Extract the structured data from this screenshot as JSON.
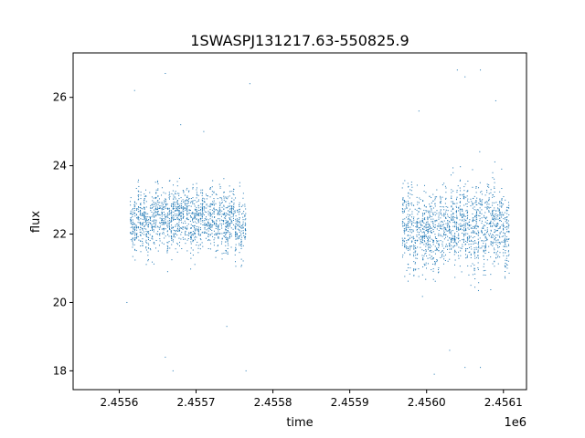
{
  "chart_data": {
    "type": "scatter",
    "title": "1SWASPJ131217.63-550825.9",
    "xlabel": "time",
    "ylabel": "flux",
    "x_offset_label": "1e6",
    "xlim": [
      2.45554,
      2.45613
    ],
    "ylim": [
      17.45,
      27.3
    ],
    "x_ticks": [
      2.4556,
      2.4557,
      2.4558,
      2.4559,
      2.456,
      2.4561
    ],
    "x_tick_labels": [
      "2.4556",
      "2.4557",
      "2.4558",
      "2.4559",
      "2.4560",
      "2.4561"
    ],
    "y_ticks": [
      18,
      20,
      22,
      24,
      26
    ],
    "y_tick_labels": [
      "18",
      "20",
      "22",
      "24",
      "26"
    ],
    "grid": false,
    "marker_color": "#1f77b4",
    "series": [
      {
        "segments": [
          {
            "x_start": 2.455615,
            "x_end": 2.455764,
            "y_center": 22.4,
            "y_spread": 0.75,
            "y_min": 20.0,
            "y_max": 24.1
          },
          {
            "x_start": 2.455969,
            "x_end": 2.456107,
            "y_center": 22.2,
            "y_spread": 1.0,
            "y_min": 20.0,
            "y_max": 24.6
          }
        ],
        "outliers": [
          [
            2.45562,
            26.2
          ],
          [
            2.45566,
            26.7
          ],
          [
            2.45571,
            25.0
          ],
          [
            2.45568,
            25.2
          ],
          [
            2.45566,
            18.4
          ],
          [
            2.45567,
            18.0
          ],
          [
            2.45574,
            19.3
          ],
          [
            2.45577,
            26.4
          ],
          [
            2.455765,
            18.0
          ],
          [
            2.45561,
            20.0
          ],
          [
            2.45599,
            25.6
          ],
          [
            2.45604,
            26.8
          ],
          [
            2.45605,
            26.6
          ],
          [
            2.45607,
            26.8
          ],
          [
            2.45601,
            17.9
          ],
          [
            2.45605,
            18.1
          ],
          [
            2.45607,
            18.1
          ],
          [
            2.45603,
            18.6
          ],
          [
            2.45609,
            25.9
          ]
        ]
      }
    ]
  }
}
